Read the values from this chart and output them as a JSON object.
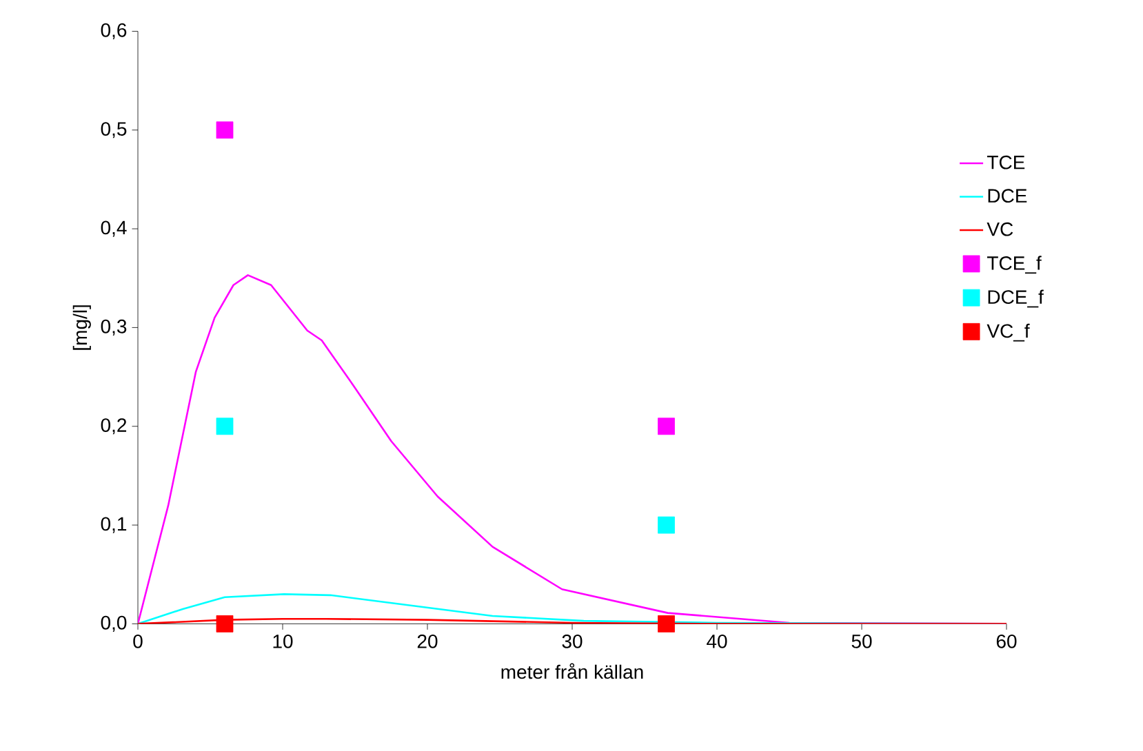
{
  "chart_data": {
    "type": "line",
    "xlabel": "meter från källan",
    "ylabel": "[mg/l]",
    "xlim": [
      0,
      60
    ],
    "xticks": [
      0,
      10,
      20,
      30,
      40,
      50,
      60
    ],
    "ylim": [
      0,
      0.6
    ],
    "yticks": [
      {
        "value": 0,
        "label": "0,0"
      },
      {
        "value": 0.1,
        "label": "0,1"
      },
      {
        "value": 0.2,
        "label": "0,2"
      },
      {
        "value": 0.3,
        "label": "0,3"
      },
      {
        "value": 0.4,
        "label": "0,4"
      },
      {
        "value": 0.5,
        "label": "0,5"
      },
      {
        "value": 0.6,
        "label": "0,6"
      }
    ],
    "grid": false,
    "legend": "right",
    "marker": "none",
    "line_style": "solid",
    "series": [
      {
        "name": "TCE",
        "color": "#ff00ff",
        "x": [
          0,
          2.1,
          4.0,
          5.3,
          6.6,
          7.6,
          9.2,
          11.7,
          12.7,
          14.9,
          17.5,
          20.7,
          24.5,
          29.3,
          36.6,
          45,
          60
        ],
        "values": [
          0,
          0.12,
          0.255,
          0.31,
          0.343,
          0.353,
          0.343,
          0.297,
          0.287,
          0.241,
          0.185,
          0.129,
          0.078,
          0.035,
          0.011,
          0.001,
          0
        ]
      },
      {
        "name": "DCE",
        "color": "#00ffff",
        "x": [
          0,
          3.1,
          6.0,
          10.1,
          13.3,
          18.1,
          24.5,
          30.8,
          40,
          60
        ],
        "values": [
          0,
          0.015,
          0.027,
          0.03,
          0.029,
          0.02,
          0.008,
          0.003,
          0.001,
          0
        ]
      },
      {
        "name": "VC",
        "color": "#ff0000",
        "x": [
          0,
          6,
          10,
          13,
          20,
          30,
          40,
          60
        ],
        "values": [
          0,
          0.004,
          0.005,
          0.005,
          0.004,
          0.001,
          0,
          0
        ]
      },
      {
        "name": "TCE_f",
        "color": "#ff00ff",
        "type": "scatter",
        "marker": "square",
        "x": [
          6,
          36.5
        ],
        "values": [
          0.5,
          0.2
        ]
      },
      {
        "name": "DCE_f",
        "color": "#00ffff",
        "type": "scatter",
        "marker": "square",
        "x": [
          6,
          36.5
        ],
        "values": [
          0.2,
          0.1
        ]
      },
      {
        "name": "VC_f",
        "color": "#ff0000",
        "type": "scatter",
        "marker": "square",
        "x": [
          6,
          36.5
        ],
        "values": [
          0,
          0
        ]
      }
    ]
  }
}
